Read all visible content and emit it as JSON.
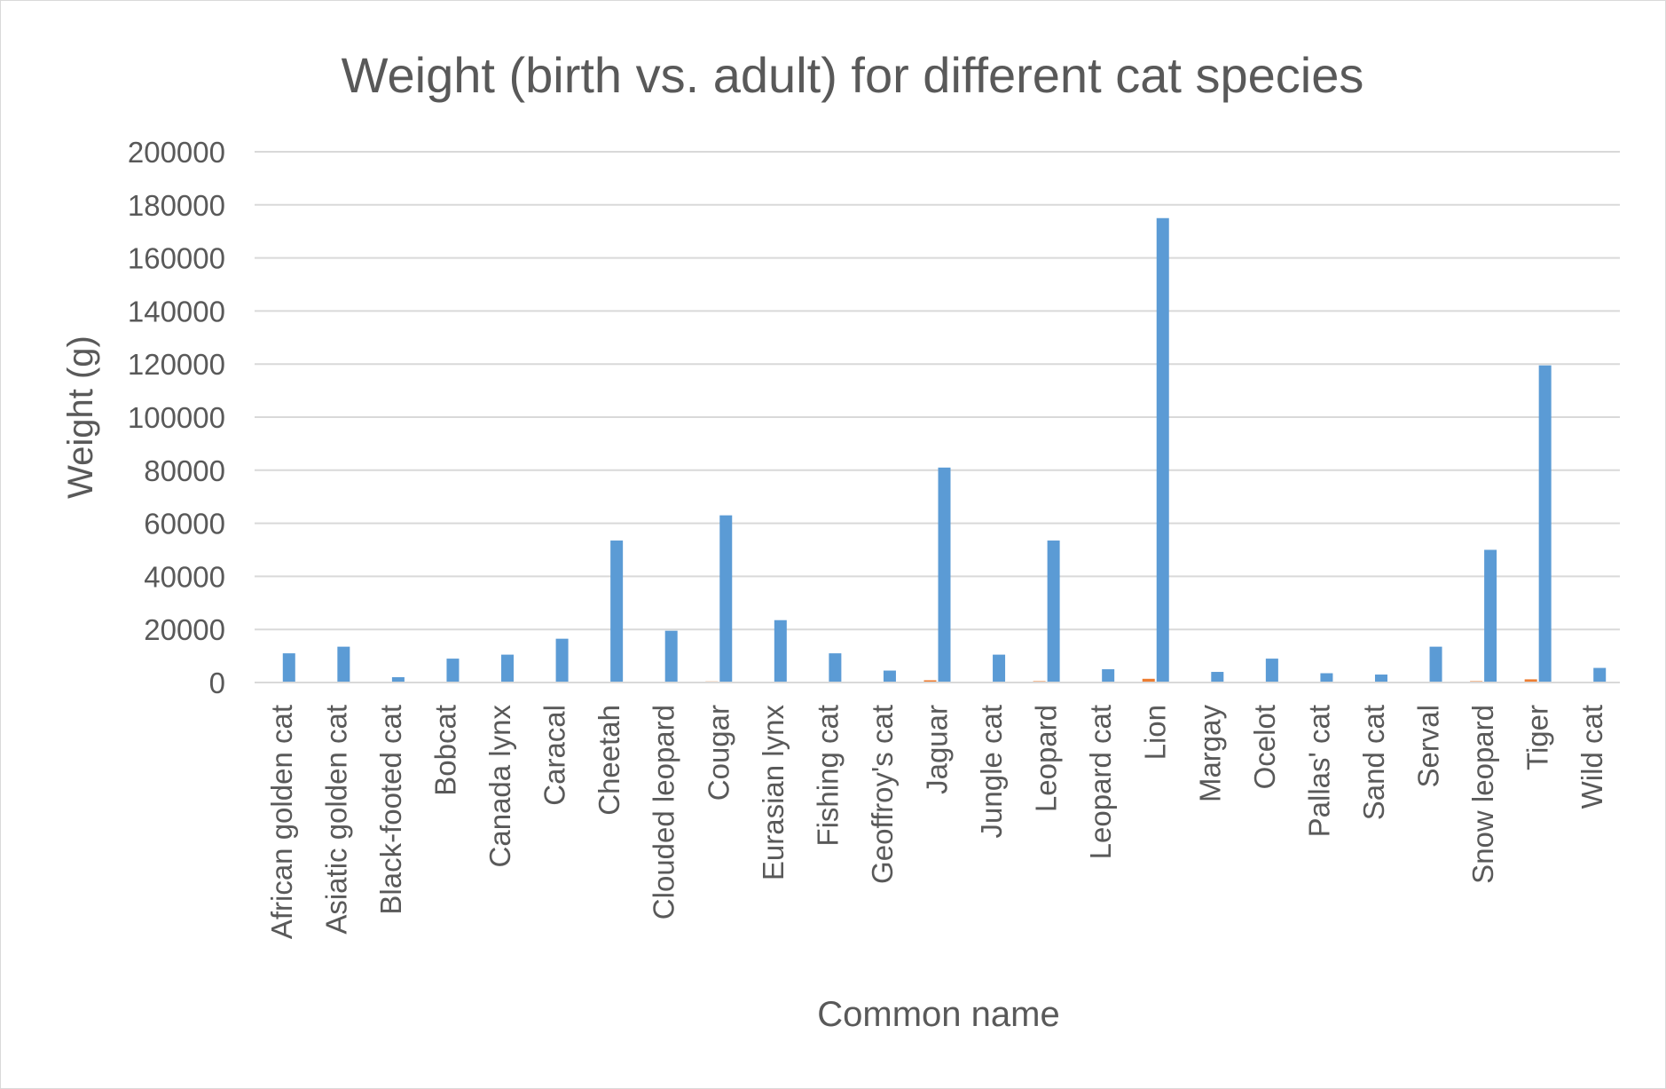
{
  "chart_data": {
    "type": "bar",
    "title": "Weight (birth vs. adult) for different cat species",
    "xlabel": "Common name",
    "ylabel": "Weight (g)",
    "ylim": [
      0,
      200000
    ],
    "yticks": [
      0,
      20000,
      40000,
      60000,
      80000,
      100000,
      120000,
      140000,
      160000,
      180000,
      200000
    ],
    "ytick_labels": [
      "0",
      "20000",
      "40000",
      "60000",
      "80000",
      "100000",
      "120000",
      "140000",
      "160000",
      "180000",
      "200000"
    ],
    "grid": true,
    "legend": "none",
    "categories": [
      "African golden cat",
      "Asiatic golden cat",
      "Black-footed cat",
      "Bobcat",
      "Canada lynx",
      "Caracal",
      "Cheetah",
      "Clouded leopard",
      "Cougar",
      "Eurasian lynx",
      "Fishing cat",
      "Geoffroy's cat",
      "Jaguar",
      "Jungle cat",
      "Leopard",
      "Leopard cat",
      "Lion",
      "Margay",
      "Ocelot",
      "Pallas' cat",
      "Sand cat",
      "Serval",
      "Snow leopard",
      "Tiger",
      "Wild cat"
    ],
    "series": [
      {
        "name": "Adult weight",
        "color": "#5b9bd5",
        "values": [
          11000,
          13500,
          2000,
          9000,
          10500,
          16500,
          53500,
          19500,
          63000,
          23500,
          11000,
          4500,
          81000,
          10500,
          53500,
          5000,
          175000,
          4000,
          9000,
          3500,
          3000,
          13500,
          50000,
          119500,
          5500
        ]
      },
      {
        "name": "Birth weight",
        "color": "#ed7d31",
        "values": [
          150,
          250,
          70,
          300,
          200,
          200,
          300,
          150,
          400,
          300,
          170,
          80,
          850,
          130,
          500,
          75,
          1400,
          85,
          250,
          85,
          60,
          250,
          500,
          1200,
          100
        ]
      }
    ]
  }
}
